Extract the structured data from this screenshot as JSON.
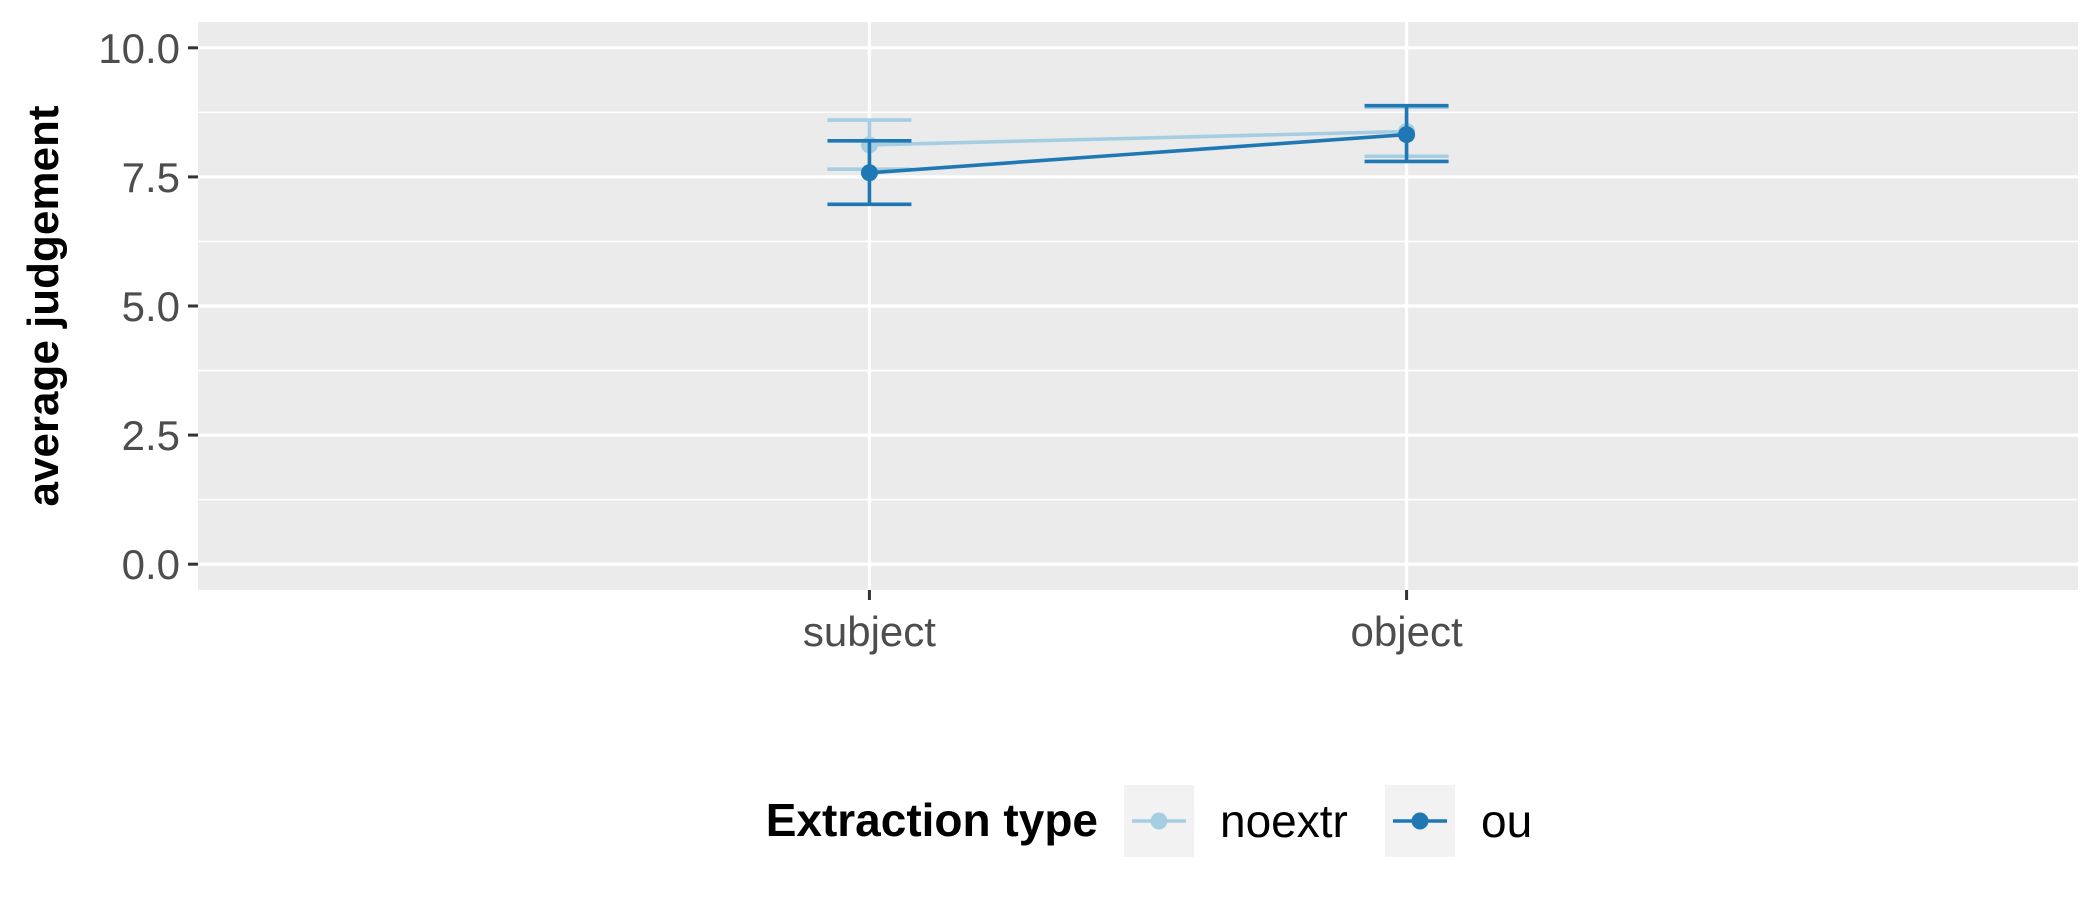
{
  "chart_data": {
    "type": "line",
    "title": "",
    "xlabel": "",
    "ylabel": "average judgement",
    "categories": [
      "subject",
      "object"
    ],
    "ylim": [
      -0.5,
      10.5
    ],
    "yticks": [
      0.0,
      2.5,
      5.0,
      7.5,
      10.0
    ],
    "ytick_labels": [
      "0.0",
      "2.5",
      "5.0",
      "7.5",
      "10.0"
    ],
    "grid": true,
    "legend": {
      "title": "Extraction type",
      "position": "bottom"
    },
    "series": [
      {
        "name": "noextr",
        "color": "#a6cee3",
        "values": [
          8.12,
          8.38
        ],
        "lower": [
          7.65,
          7.9
        ],
        "upper": [
          8.6,
          8.85
        ]
      },
      {
        "name": "ou",
        "color": "#1f78b4",
        "values": [
          7.58,
          8.32
        ],
        "lower": [
          6.97,
          7.8
        ],
        "upper": [
          8.2,
          8.88
        ]
      }
    ]
  }
}
